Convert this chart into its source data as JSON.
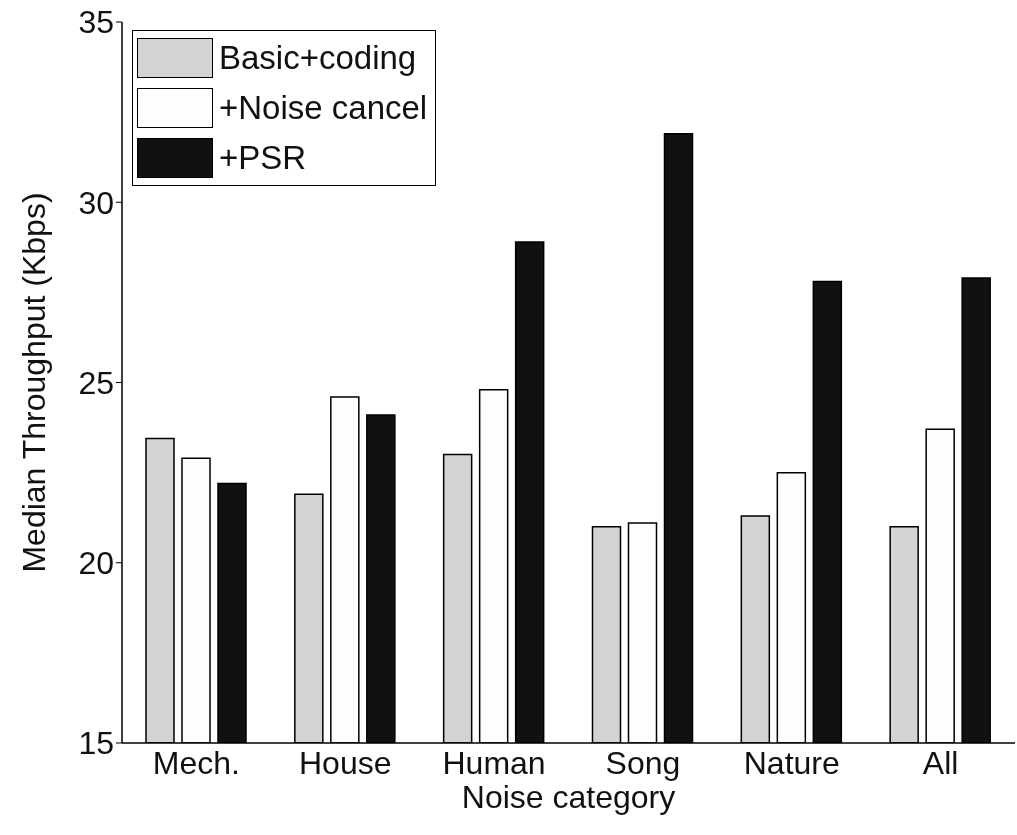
{
  "chart_data": {
    "type": "bar",
    "xlabel": "Noise category",
    "ylabel": "Median Throughput (Kbps)",
    "categories": [
      "Mech.",
      "House",
      "Human",
      "Song",
      "Nature",
      "All"
    ],
    "series": [
      {
        "name": "Basic+coding",
        "color": "#d3d3d3",
        "values": [
          23.45,
          21.9,
          23.0,
          21.0,
          21.3,
          21.0
        ]
      },
      {
        "name": "+Noise cancel",
        "color": "#fdfdfd",
        "values": [
          22.9,
          24.6,
          24.8,
          21.1,
          22.5,
          23.7
        ]
      },
      {
        "name": "+PSR",
        "color": "#111111",
        "values": [
          22.2,
          24.1,
          28.9,
          31.9,
          27.8,
          27.9
        ]
      }
    ],
    "ylim": [
      15,
      35
    ],
    "yticks": [
      15,
      20,
      25,
      30,
      35
    ],
    "grid": false,
    "legend": "top left"
  }
}
